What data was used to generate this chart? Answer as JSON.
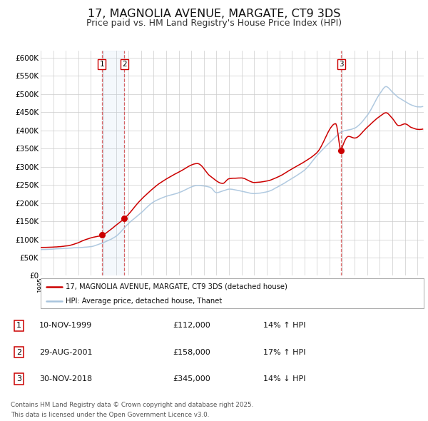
{
  "title": "17, MAGNOLIA AVENUE, MARGATE, CT9 3DS",
  "subtitle": "Price paid vs. HM Land Registry's House Price Index (HPI)",
  "title_fontsize": 11.5,
  "subtitle_fontsize": 9,
  "background_color": "#ffffff",
  "plot_bg_color": "#ffffff",
  "grid_color": "#cccccc",
  "red_color": "#cc0000",
  "blue_color": "#a8c4dd",
  "sale1_date": 1999.87,
  "sale1_price": 112000,
  "sale2_date": 2001.66,
  "sale2_price": 158000,
  "sale3_date": 2018.92,
  "sale3_price": 345000,
  "ylim_min": 0,
  "ylim_max": 620000,
  "ytick_step": 50000,
  "xmin": 1995.0,
  "xmax": 2025.5,
  "legend_house": "17, MAGNOLIA AVENUE, MARGATE, CT9 3DS (detached house)",
  "legend_hpi": "HPI: Average price, detached house, Thanet",
  "footer1": "Contains HM Land Registry data © Crown copyright and database right 2025.",
  "footer2": "This data is licensed under the Open Government Licence v3.0.",
  "table": [
    {
      "label": "1",
      "date": "10-NOV-1999",
      "price": "£112,000",
      "hpi": "14% ↑ HPI"
    },
    {
      "label": "2",
      "date": "29-AUG-2001",
      "price": "£158,000",
      "hpi": "17% ↑ HPI"
    },
    {
      "label": "3",
      "date": "30-NOV-2018",
      "price": "£345,000",
      "hpi": "14% ↓ HPI"
    }
  ]
}
